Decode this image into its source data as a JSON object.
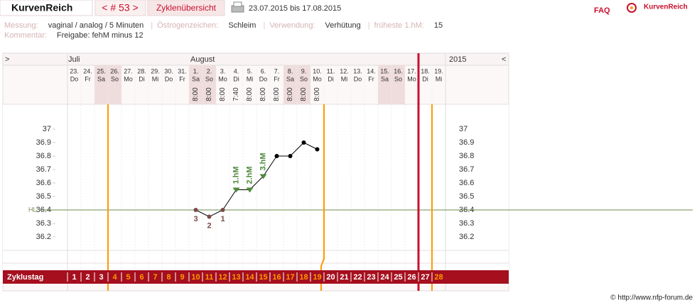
{
  "header": {
    "brand": "KurvenReich",
    "cycle_nav": "< # 53 >",
    "overview": "Zyklenübersicht",
    "date_range": "23.07.2015 bis 17.08.2015",
    "faq": "FAQ",
    "logo": "KurvenReich"
  },
  "info": {
    "separator": "|",
    "rows": [
      [
        {
          "label": "Messung:",
          "value": "vaginal / analog / 5 Minuten"
        },
        {
          "label": "Östrogenzeichen:",
          "value": "Schleim"
        },
        {
          "label": "Verwendung:",
          "value": "Verhütung"
        },
        {
          "label": "früheste 1.hM:",
          "value": "15"
        }
      ],
      [
        {
          "label": "Kommentar:",
          "value": "Freigabe: fehM minus 12"
        }
      ]
    ]
  },
  "chart_data": {
    "type": "line",
    "nav_prev": ">",
    "nav_next": "<",
    "year": "2015",
    "months": [
      "Juli",
      "August"
    ],
    "categories": [
      "23.",
      "24.",
      "25.",
      "26.",
      "27.",
      "28.",
      "29.",
      "30.",
      "31.",
      "1.",
      "2.",
      "3.",
      "4.",
      "5.",
      "6.",
      "7.",
      "8.",
      "9.",
      "10.",
      "11.",
      "12.",
      "13.",
      "14.",
      "15.",
      "16.",
      "17.",
      "18.",
      "19."
    ],
    "weekdays": [
      "Do",
      "Fr",
      "Sa",
      "So",
      "Mo",
      "Di",
      "Mi",
      "Do",
      "Fr",
      "Sa",
      "So",
      "Mo",
      "Di",
      "Mi",
      "Do",
      "Fr",
      "Sa",
      "So",
      "Mo",
      "Di",
      "Mi",
      "Do",
      "Fr",
      "Sa",
      "So",
      "Mo",
      "Di",
      "Mi"
    ],
    "shaded": [
      false,
      false,
      true,
      true,
      false,
      false,
      false,
      false,
      false,
      true,
      true,
      false,
      false,
      false,
      false,
      false,
      true,
      true,
      false,
      false,
      false,
      false,
      false,
      true,
      true,
      false,
      false,
      false
    ],
    "times": [
      null,
      null,
      null,
      null,
      null,
      null,
      null,
      null,
      null,
      "8:00",
      "8:00",
      "8:00",
      "7:40",
      "8:00",
      "8:00",
      "8:00",
      "8:00",
      "8:00",
      "8:00",
      null,
      null,
      null,
      null,
      null,
      null,
      null,
      null,
      null
    ],
    "values": [
      null,
      null,
      null,
      null,
      null,
      null,
      null,
      null,
      null,
      36.4,
      36.35,
      36.4,
      36.55,
      36.55,
      36.65,
      36.8,
      36.8,
      36.9,
      36.85,
      null,
      null,
      null,
      null,
      null,
      null,
      null,
      null,
      null
    ],
    "point_labels": [
      null,
      null,
      null,
      null,
      null,
      null,
      null,
      null,
      null,
      "3",
      "2",
      "1",
      "1.hM",
      "2.hM",
      "3.hM",
      null,
      null,
      null,
      null,
      null,
      null,
      null,
      null,
      null,
      null,
      null,
      null,
      null
    ],
    "marker_shapes": [
      null,
      null,
      null,
      null,
      null,
      null,
      null,
      null,
      null,
      "circle",
      "circle",
      "circle",
      "triangle",
      "triangle",
      "triangle",
      "circle",
      "circle",
      "circle",
      "circle",
      null,
      null,
      null,
      null,
      null,
      null,
      null,
      null,
      null
    ],
    "marker_colors": [
      null,
      null,
      null,
      null,
      null,
      null,
      null,
      null,
      null,
      "#7d4a4a",
      "#7d4a4a",
      "#7d4a4a",
      "#4e8a3a",
      "#4e8a3a",
      "#4e8a3a",
      "#000000",
      "#000000",
      "#000000",
      "#000000",
      null,
      null,
      null,
      null,
      null,
      null,
      null,
      null,
      null
    ],
    "line_color": "#000000",
    "ylim": [
      36.1,
      37.2
    ],
    "yticks": [
      36.2,
      36.3,
      36.4,
      36.5,
      36.6,
      36.7,
      36.8,
      36.9,
      37
    ],
    "hl": {
      "label": "HL:",
      "value": 36.4,
      "color": "#6b8e4e"
    },
    "cycle_label": "Zyklustag",
    "cycle_days": [
      1,
      2,
      3,
      4,
      5,
      6,
      7,
      8,
      9,
      10,
      11,
      12,
      13,
      14,
      15,
      16,
      17,
      18,
      19,
      20,
      21,
      22,
      23,
      24,
      25,
      26,
      27,
      28
    ],
    "cycle_day_colors": [
      "#ffffff",
      "#ffffff",
      "#ffffff",
      "#ff9900",
      "#ff9900",
      "#ff9900",
      "#ff9900",
      "#ff9900",
      "#ff9900",
      "#ff9900",
      "#ff9900",
      "#ff9900",
      "#ff9900",
      "#ff9900",
      "#ff9900",
      "#ff9900",
      "#ff9900",
      "#ff9900",
      "#ff9900",
      "#ffffff",
      "#ffffff",
      "#ffffff",
      "#ffffff",
      "#ffffff",
      "#ffffff",
      "#ffffff",
      "#ffffff",
      "#ff9900"
    ]
  },
  "footer": "© http://www.nfp-forum.de"
}
